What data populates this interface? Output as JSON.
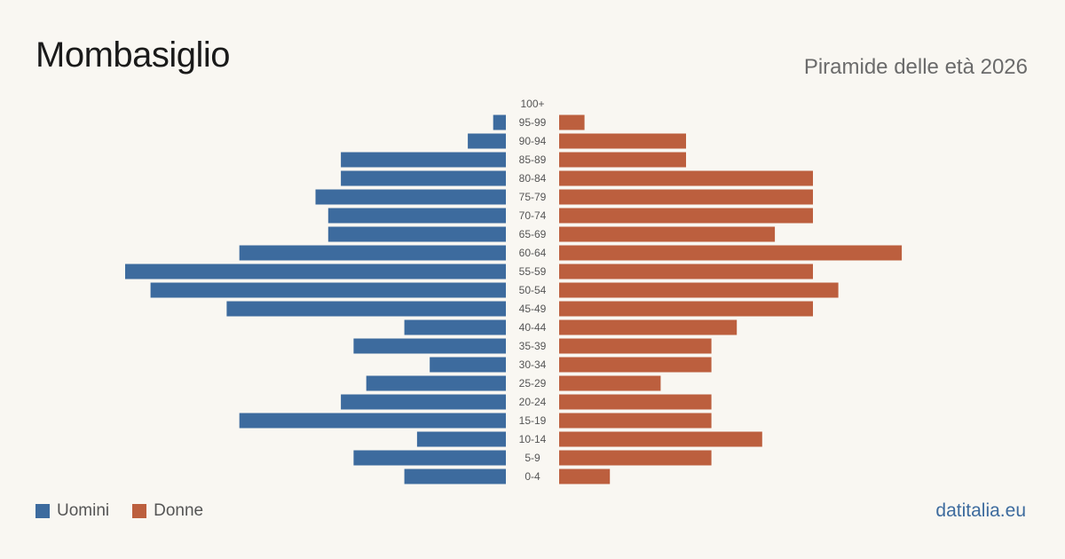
{
  "header": {
    "title": "Mombasiglio",
    "subtitle": "Piramide delle età 2026"
  },
  "legend": [
    {
      "label": "Uomini",
      "color": "#3d6b9e"
    },
    {
      "label": "Donne",
      "color": "#bc5f3e"
    }
  ],
  "brand": "datitalia.eu",
  "chart_data": {
    "type": "bar",
    "orientation": "horizontal-pyramid",
    "categories": [
      "100+",
      "95-99",
      "90-94",
      "85-89",
      "80-84",
      "75-79",
      "70-74",
      "65-69",
      "60-64",
      "55-59",
      "50-54",
      "45-49",
      "40-44",
      "35-39",
      "30-34",
      "25-29",
      "20-24",
      "15-19",
      "10-14",
      "5-9",
      "0-4"
    ],
    "series": [
      {
        "name": "Uomini",
        "color": "#3d6b9e",
        "values": [
          0,
          1,
          3,
          13,
          13,
          15,
          14,
          14,
          21,
          30,
          28,
          22,
          8,
          12,
          6,
          11,
          13,
          21,
          7,
          12,
          8
        ]
      },
      {
        "name": "Donne",
        "color": "#bc5f3e",
        "values": [
          0,
          2,
          10,
          10,
          20,
          20,
          20,
          17,
          27,
          20,
          22,
          20,
          14,
          12,
          12,
          8,
          12,
          12,
          16,
          12,
          4
        ]
      }
    ],
    "grid": false,
    "legend_position": "bottom-left"
  }
}
